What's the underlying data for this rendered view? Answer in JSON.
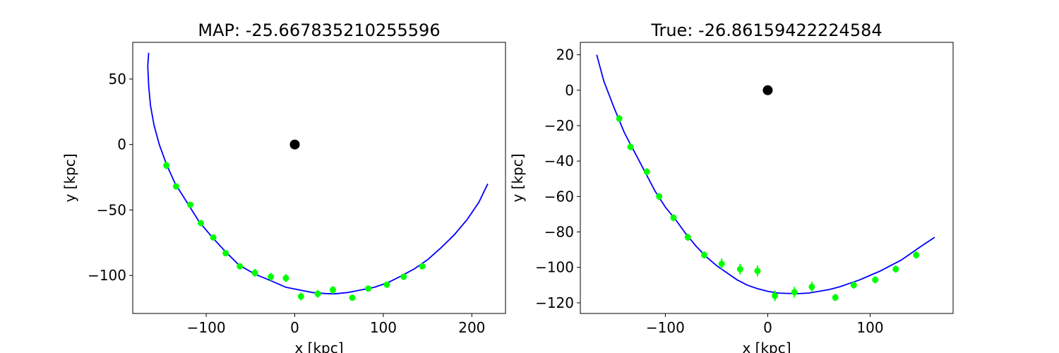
{
  "figure": {
    "background": "#ffffff"
  },
  "chart_data": [
    {
      "type": "scatter",
      "title": "MAP: -25.667835210255596",
      "xlabel": "x [kpc]",
      "ylabel": "y [kpc]",
      "xlim": [
        -183,
        238
      ],
      "ylim": [
        -129,
        78
      ],
      "xticks": [
        -100,
        0,
        100,
        200
      ],
      "xtick_labels": [
        "−100",
        "0",
        "100",
        "200"
      ],
      "yticks": [
        -100,
        -50,
        0,
        50
      ],
      "ytick_labels": [
        "−100",
        "−50",
        "0",
        "50"
      ],
      "grid": false,
      "center_point": {
        "x": 0,
        "y": 0,
        "color": "#000000"
      },
      "series": [
        {
          "kind": "line",
          "color": "#0000ff",
          "points": [
            [
              -165,
              70
            ],
            [
              -166,
              60
            ],
            [
              -165,
              45
            ],
            [
              -163,
              30
            ],
            [
              -159,
              15
            ],
            [
              -153,
              0
            ],
            [
              -145,
              -15
            ],
            [
              -135,
              -30
            ],
            [
              -120,
              -46
            ],
            [
              -108,
              -59
            ],
            [
              -93,
              -71
            ],
            [
              -78,
              -82
            ],
            [
              -63,
              -92
            ],
            [
              -45,
              -99
            ],
            [
              -27,
              -104
            ],
            [
              -10,
              -109
            ],
            [
              5,
              -111
            ],
            [
              20,
              -113
            ],
            [
              35,
              -113.8
            ],
            [
              45,
              -114
            ],
            [
              60,
              -113
            ],
            [
              75,
              -111
            ],
            [
              90,
              -109
            ],
            [
              105,
              -105.5
            ],
            [
              120,
              -100.5
            ],
            [
              135,
              -95
            ],
            [
              150,
              -88
            ],
            [
              165,
              -79
            ],
            [
              180,
              -69
            ],
            [
              195,
              -57
            ],
            [
              208,
              -44
            ],
            [
              218,
              -30
            ]
          ]
        },
        {
          "kind": "errorbar",
          "color": "#00ff00",
          "points": [
            [
              -145,
              -16
            ],
            [
              -134,
              -32
            ],
            [
              -118,
              -46
            ],
            [
              -106,
              -60
            ],
            [
              -92,
              -71
            ],
            [
              -78,
              -83
            ],
            [
              -62,
              -93
            ],
            [
              -45,
              -98
            ],
            [
              -27,
              -101
            ],
            [
              -10,
              -102
            ],
            [
              7,
              -116
            ],
            [
              26,
              -114
            ],
            [
              43,
              -111
            ],
            [
              65,
              -117
            ],
            [
              83,
              -110
            ],
            [
              104,
              -107
            ],
            [
              123,
              -101
            ],
            [
              144,
              -93
            ]
          ],
          "yerr": [
            3,
            2,
            2,
            2,
            2,
            2,
            2,
            3,
            3,
            3,
            3,
            3,
            3,
            2,
            2,
            2,
            2,
            2
          ]
        }
      ]
    },
    {
      "type": "scatter",
      "title": "True: -26.86159422224584",
      "xlabel": "x [kpc]",
      "ylabel": "y [kpc]",
      "xlim": [
        -183,
        181
      ],
      "ylim": [
        -126,
        27
      ],
      "xticks": [
        -100,
        0,
        100
      ],
      "xtick_labels": [
        "−100",
        "0",
        "100"
      ],
      "yticks": [
        -120,
        -100,
        -80,
        -60,
        -40,
        -20,
        0,
        20
      ],
      "ytick_labels": [
        "−120",
        "−100",
        "−80",
        "−60",
        "−40",
        "−20",
        "0",
        "20"
      ],
      "grid": false,
      "center_point": {
        "x": 0,
        "y": 0,
        "color": "#000000"
      },
      "series": [
        {
          "kind": "line",
          "color": "#0000ff",
          "points": [
            [
              -167,
              20
            ],
            [
              -160,
              5
            ],
            [
              -150,
              -10
            ],
            [
              -140,
              -24
            ],
            [
              -130,
              -35
            ],
            [
              -120,
              -46
            ],
            [
              -110,
              -57
            ],
            [
              -100,
              -66
            ],
            [
              -90,
              -73
            ],
            [
              -80,
              -81
            ],
            [
              -70,
              -88
            ],
            [
              -60,
              -94
            ],
            [
              -50,
              -99
            ],
            [
              -40,
              -103
            ],
            [
              -30,
              -107
            ],
            [
              -20,
              -110
            ],
            [
              -10,
              -112
            ],
            [
              0,
              -113.5
            ],
            [
              10,
              -114.5
            ],
            [
              20,
              -114.7
            ],
            [
              30,
              -114.8
            ],
            [
              40,
              -114.5
            ],
            [
              50,
              -113.5
            ],
            [
              60,
              -112.5
            ],
            [
              70,
              -111
            ],
            [
              80,
              -109
            ],
            [
              90,
              -107
            ],
            [
              100,
              -104.5
            ],
            [
              110,
              -102
            ],
            [
              120,
              -99
            ],
            [
              130,
              -96
            ],
            [
              140,
              -92
            ],
            [
              150,
              -88
            ],
            [
              163,
              -83
            ]
          ]
        },
        {
          "kind": "errorbar",
          "color": "#00ff00",
          "points": [
            [
              -145,
              -16
            ],
            [
              -134,
              -32
            ],
            [
              -118,
              -46
            ],
            [
              -106,
              -60
            ],
            [
              -92,
              -72
            ],
            [
              -78,
              -83
            ],
            [
              -62,
              -93
            ],
            [
              -45,
              -98
            ],
            [
              -27,
              -101
            ],
            [
              -10,
              -102
            ],
            [
              7,
              -116
            ],
            [
              26,
              -114
            ],
            [
              43,
              -111
            ],
            [
              66,
              -117
            ],
            [
              84,
              -110
            ],
            [
              105,
              -107
            ],
            [
              125,
              -101
            ],
            [
              145,
              -93
            ]
          ],
          "yerr": [
            2,
            2,
            2,
            2,
            2,
            2,
            2,
            3,
            3,
            3,
            3,
            3,
            3,
            2,
            2,
            2,
            2,
            2
          ]
        }
      ]
    }
  ]
}
